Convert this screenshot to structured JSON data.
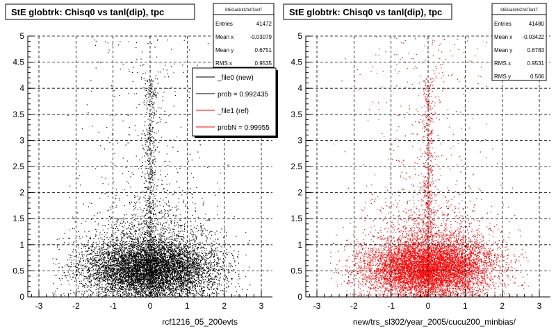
{
  "chart_data": [
    {
      "type": "scatter",
      "title": "StE globtrk: Chisq0 vs tanl(dip), tpc",
      "xlabel": "rcf1216_05_200evts",
      "ylabel": "",
      "xlim": [
        -3.3,
        3.3
      ],
      "ylim": [
        0,
        5
      ],
      "xticks": [
        "-3",
        "-2",
        "-1",
        "0",
        "1",
        "2",
        "3"
      ],
      "yticks": [
        "0",
        "0.5",
        "1",
        "1.5",
        "2",
        "2.5",
        "3",
        "3.5",
        "4",
        "4.5",
        "5"
      ],
      "grid": true,
      "marker_color": "#000000",
      "stats": {
        "name": "StEGaGrkChi0TanlT",
        "rows": [
          {
            "label": "Entries",
            "value": "41472"
          },
          {
            "label": "Mean x",
            "value": "-0.03079"
          },
          {
            "label": "Mean y",
            "value": "0.6751"
          },
          {
            "label": "RMS x",
            "value": "0.9535"
          }
        ]
      },
      "legend": {
        "placement": "top-right",
        "entries": [
          {
            "label": "_file0 (new)",
            "color": "#000000"
          },
          {
            "label": "prob = 0.992435",
            "color": "#000000"
          },
          {
            "label": "_file1 (ref)",
            "color": "#ff0000"
          },
          {
            "label": "probN = 0.99955",
            "color": "#ff0000"
          }
        ]
      }
    },
    {
      "type": "scatter",
      "title": "StE globtrk: Chisq0 vs tanl(dip), tpc",
      "xlabel": "new/trs_sl302/year_2005/cucu200_minbias/",
      "ylabel": "",
      "xlim": [
        -3.3,
        3.3
      ],
      "ylim": [
        0,
        5
      ],
      "xticks": [
        "-3",
        "-2",
        "-1",
        "0",
        "1",
        "2",
        "3"
      ],
      "yticks": [
        "0",
        "0.5",
        "1",
        "1.5",
        "2",
        "2.5",
        "3",
        "3.5",
        "4",
        "4.5",
        "5"
      ],
      "grid": true,
      "marker_color": "#ff0000",
      "stats": {
        "name": "StEGaGrkChi0TanlT",
        "rows": [
          {
            "label": "Entries",
            "value": "41480"
          },
          {
            "label": "Mean x",
            "value": "-0.03422"
          },
          {
            "label": "Mean y",
            "value": "0.6783"
          },
          {
            "label": "RMS x",
            "value": "0.9531"
          },
          {
            "label": "RMS y",
            "value": "0.506"
          }
        ]
      }
    }
  ]
}
